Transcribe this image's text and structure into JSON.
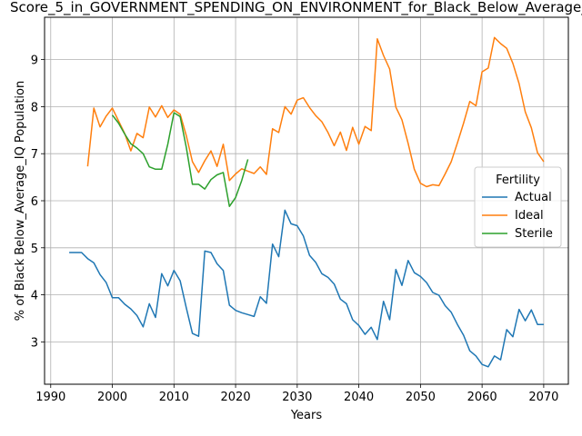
{
  "chart_data": {
    "type": "line",
    "title": "Score_5_in_GOVERNMENT_SPENDING_ON_ENVIRONMENT_for_Black_Below_Average_IQ",
    "xlabel": "Years",
    "ylabel": "% of Black Below_Average_IQ Population",
    "xlim": [
      1989,
      2074
    ],
    "ylim": [
      2.1,
      9.9
    ],
    "xticks": [
      1990,
      2000,
      2010,
      2020,
      2030,
      2040,
      2050,
      2060,
      2070
    ],
    "yticks": [
      3,
      4,
      5,
      6,
      7,
      8,
      9
    ],
    "grid": true,
    "legend": {
      "title": "Fertility",
      "placement": "center-right"
    },
    "series": [
      {
        "name": "Actual",
        "color": "#1f77b4",
        "x": [
          1993,
          1994,
          1995,
          1996,
          1997,
          1998,
          1999,
          2000,
          2001,
          2002,
          2003,
          2004,
          2005,
          2006,
          2007,
          2008,
          2009,
          2010,
          2011,
          2012,
          2013,
          2014,
          2015,
          2016,
          2017,
          2018,
          2019,
          2020,
          2021,
          2022,
          2023,
          2024,
          2025,
          2026,
          2027,
          2028,
          2029,
          2030,
          2031,
          2032,
          2033,
          2034,
          2035,
          2036,
          2037,
          2038,
          2039,
          2040,
          2041,
          2042,
          2043,
          2044,
          2045,
          2046,
          2047,
          2048,
          2049,
          2050,
          2051,
          2052,
          2053,
          2054,
          2055,
          2056,
          2057,
          2058,
          2059,
          2060,
          2061,
          2062,
          2063,
          2064,
          2065,
          2066,
          2067,
          2068,
          2069,
          2070
        ],
        "values": [
          4.9,
          4.9,
          4.9,
          4.77,
          4.68,
          4.43,
          4.26,
          3.94,
          3.94,
          3.8,
          3.7,
          3.56,
          3.32,
          3.81,
          3.52,
          4.45,
          4.19,
          4.52,
          4.3,
          3.72,
          3.18,
          3.12,
          4.93,
          4.9,
          4.66,
          4.52,
          3.78,
          3.67,
          3.62,
          3.58,
          3.54,
          3.96,
          3.82,
          5.08,
          4.81,
          5.8,
          5.51,
          5.47,
          5.25,
          4.84,
          4.69,
          4.45,
          4.37,
          4.23,
          3.91,
          3.81,
          3.47,
          3.35,
          3.16,
          3.31,
          3.05,
          3.86,
          3.47,
          4.54,
          4.2,
          4.73,
          4.47,
          4.39,
          4.26,
          4.05,
          3.99,
          3.77,
          3.63,
          3.37,
          3.14,
          2.81,
          2.7,
          2.52,
          2.47,
          2.7,
          2.62,
          3.26,
          3.11,
          3.69,
          3.45,
          3.68,
          3.37,
          3.37
        ]
      },
      {
        "name": "Ideal",
        "color": "#ff7f0e",
        "x": [
          1996,
          1997,
          1998,
          1999,
          2000,
          2001,
          2002,
          2003,
          2004,
          2005,
          2006,
          2007,
          2008,
          2009,
          2010,
          2011,
          2012,
          2013,
          2014,
          2015,
          2016,
          2017,
          2018,
          2019,
          2020,
          2021,
          2022,
          2023,
          2024,
          2025,
          2026,
          2027,
          2028,
          2029,
          2030,
          2031,
          2032,
          2033,
          2034,
          2035,
          2036,
          2037,
          2038,
          2039,
          2040,
          2041,
          2042,
          2043,
          2044,
          2045,
          2046,
          2047,
          2048,
          2049,
          2050,
          2051,
          2052,
          2053,
          2054,
          2055,
          2056,
          2057,
          2058,
          2059,
          2060,
          2061,
          2062,
          2063,
          2064,
          2065,
          2066,
          2067,
          2068,
          2069,
          2070
        ],
        "values": [
          6.73,
          7.97,
          7.57,
          7.8,
          7.97,
          7.7,
          7.43,
          7.06,
          7.43,
          7.34,
          7.99,
          7.78,
          8.02,
          7.77,
          7.93,
          7.84,
          7.38,
          6.83,
          6.6,
          6.85,
          7.06,
          6.73,
          7.2,
          6.43,
          6.57,
          6.68,
          6.63,
          6.58,
          6.72,
          6.56,
          7.53,
          7.45,
          8.0,
          7.84,
          8.14,
          8.19,
          7.98,
          7.81,
          7.68,
          7.45,
          7.17,
          7.46,
          7.07,
          7.56,
          7.2,
          7.58,
          7.49,
          9.44,
          9.09,
          8.8,
          7.99,
          7.72,
          7.22,
          6.67,
          6.37,
          6.3,
          6.34,
          6.32,
          6.57,
          6.83,
          7.23,
          7.65,
          8.11,
          8.02,
          8.74,
          8.82,
          9.47,
          9.34,
          9.24,
          8.92,
          8.49,
          7.89,
          7.55,
          7.02,
          6.83
        ]
      },
      {
        "name": "Sterile",
        "color": "#2ca02c",
        "x": [
          2000,
          2001,
          2002,
          2003,
          2004,
          2005,
          2006,
          2007,
          2008,
          2009,
          2010,
          2011,
          2012,
          2013,
          2014,
          2015,
          2016,
          2017,
          2018,
          2019,
          2020,
          2021,
          2022
        ],
        "values": [
          7.82,
          7.65,
          7.42,
          7.21,
          7.12,
          7.0,
          6.72,
          6.67,
          6.67,
          7.2,
          7.87,
          7.79,
          7.13,
          6.35,
          6.35,
          6.25,
          6.45,
          6.55,
          6.6,
          5.88,
          6.07,
          6.43,
          6.88
        ]
      }
    ]
  }
}
